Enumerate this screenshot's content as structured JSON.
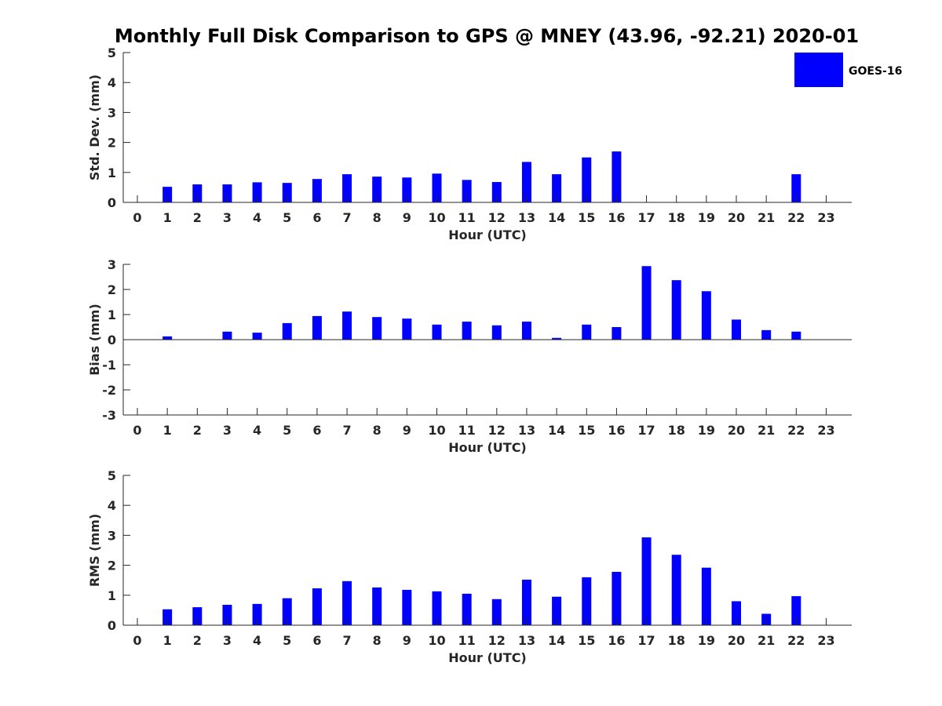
{
  "title": "Monthly Full Disk Comparison to GPS @ MNEY (43.96, -92.21) 2020-01",
  "legend": {
    "label": "GOES-16",
    "placement": "top-right"
  },
  "colors": {
    "bar": "#0000ff",
    "axis": "#262626"
  },
  "chart_data": [
    {
      "type": "bar",
      "xlabel": "Hour (UTC)",
      "ylabel": "Std. Dev. (mm)",
      "ylim": [
        0,
        5
      ],
      "yticks": [
        0,
        1,
        2,
        3,
        4,
        5
      ],
      "categories": [
        "0",
        "1",
        "2",
        "3",
        "4",
        "5",
        "6",
        "7",
        "8",
        "9",
        "10",
        "11",
        "12",
        "13",
        "14",
        "15",
        "16",
        "17",
        "18",
        "19",
        "20",
        "21",
        "22",
        "23"
      ],
      "series": [
        {
          "name": "GOES-16",
          "values": [
            null,
            0.52,
            0.6,
            0.6,
            0.67,
            0.65,
            0.78,
            0.94,
            0.86,
            0.83,
            0.96,
            0.75,
            0.68,
            1.35,
            0.94,
            1.5,
            1.7,
            null,
            null,
            null,
            null,
            null,
            0.94,
            null
          ]
        }
      ]
    },
    {
      "type": "bar",
      "xlabel": "Hour (UTC)",
      "ylabel": "Bias (mm)",
      "ylim": [
        -3,
        3
      ],
      "yticks": [
        -3,
        -2,
        -1,
        0,
        1,
        2,
        3
      ],
      "categories": [
        "0",
        "1",
        "2",
        "3",
        "4",
        "5",
        "6",
        "7",
        "8",
        "9",
        "10",
        "11",
        "12",
        "13",
        "14",
        "15",
        "16",
        "17",
        "18",
        "19",
        "20",
        "21",
        "22",
        "23"
      ],
      "series": [
        {
          "name": "GOES-16",
          "values": [
            null,
            0.13,
            0.0,
            0.32,
            0.28,
            0.66,
            0.94,
            1.12,
            0.9,
            0.84,
            0.6,
            0.72,
            0.57,
            0.72,
            0.07,
            0.6,
            0.5,
            2.93,
            2.37,
            1.93,
            0.8,
            0.38,
            0.32,
            null
          ]
        }
      ]
    },
    {
      "type": "bar",
      "xlabel": "Hour (UTC)",
      "ylabel": "RMS (mm)",
      "ylim": [
        0,
        5
      ],
      "yticks": [
        0,
        1,
        2,
        3,
        4,
        5
      ],
      "categories": [
        "0",
        "1",
        "2",
        "3",
        "4",
        "5",
        "6",
        "7",
        "8",
        "9",
        "10",
        "11",
        "12",
        "13",
        "14",
        "15",
        "16",
        "17",
        "18",
        "19",
        "20",
        "21",
        "22",
        "23"
      ],
      "series": [
        {
          "name": "GOES-16",
          "values": [
            null,
            0.53,
            0.6,
            0.68,
            0.71,
            0.9,
            1.23,
            1.47,
            1.26,
            1.18,
            1.13,
            1.05,
            0.87,
            1.52,
            0.95,
            1.6,
            1.78,
            2.93,
            2.35,
            1.92,
            0.8,
            0.38,
            0.97,
            null
          ]
        }
      ]
    }
  ]
}
